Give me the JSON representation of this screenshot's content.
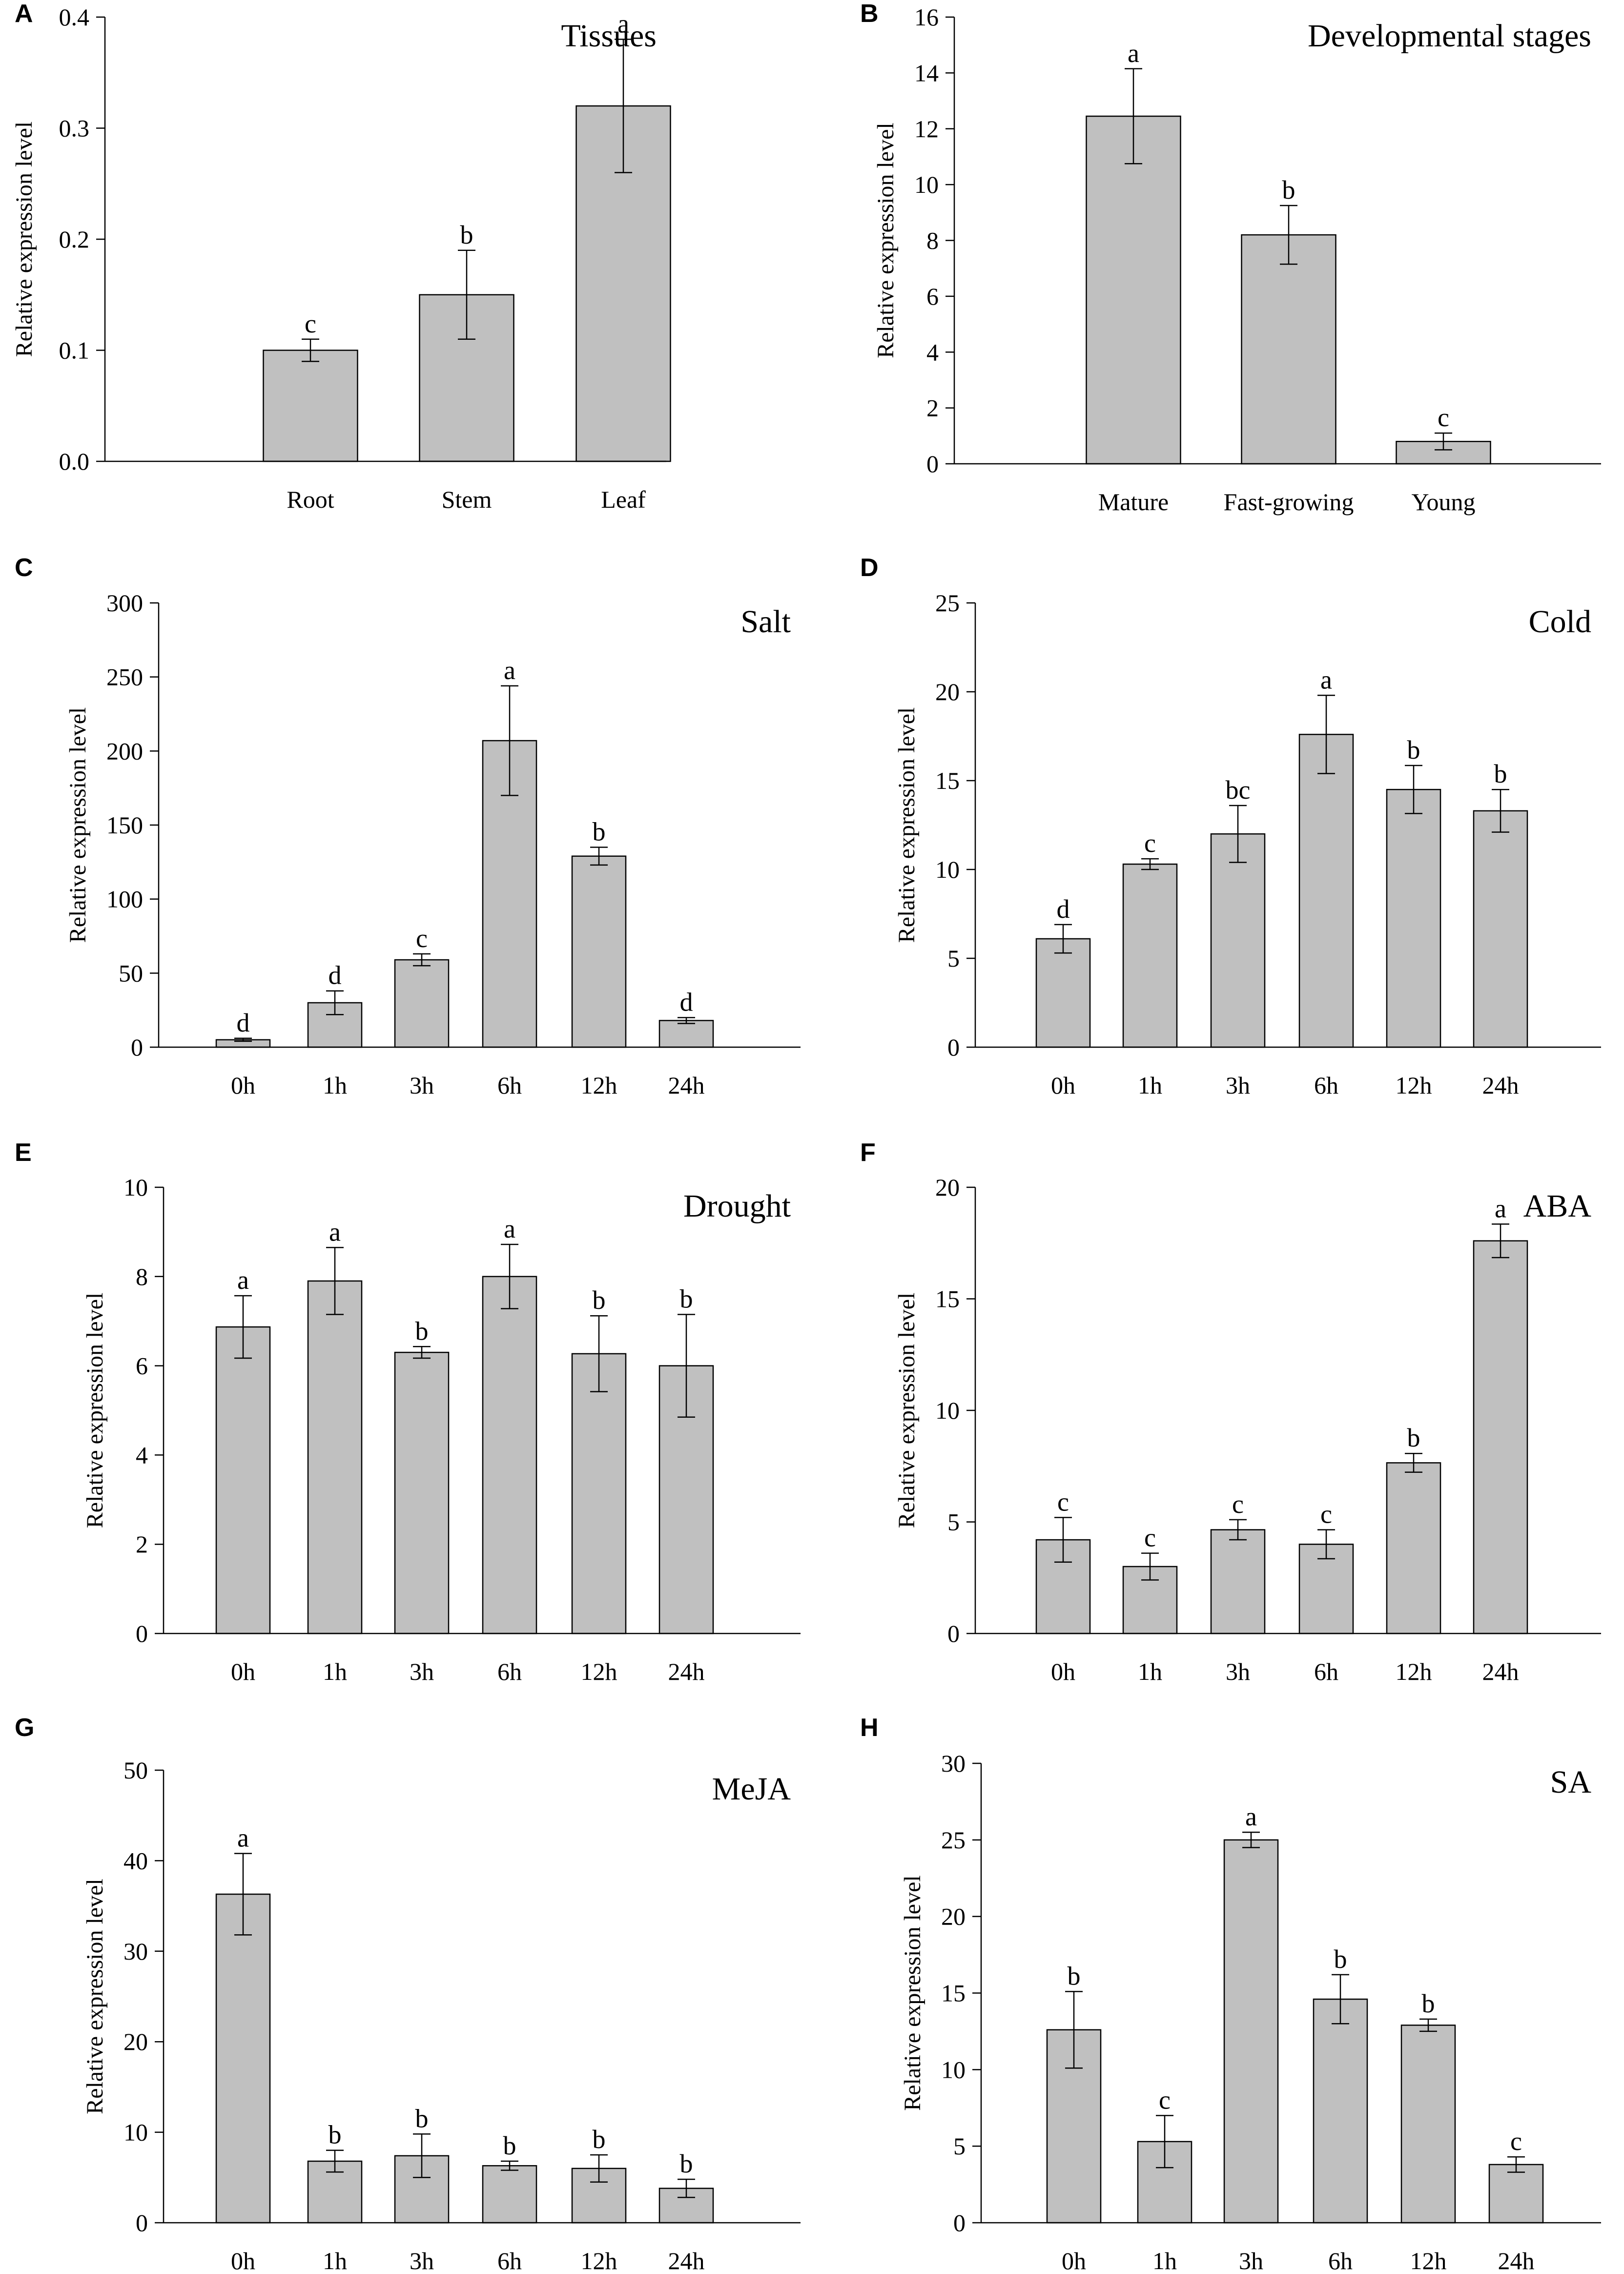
{
  "figure": {
    "axis_ylabel": "Relative expression level",
    "bar_color": "#c0c0c0",
    "edge_color": "#000000"
  },
  "chart_data": [
    {
      "panel": "A",
      "type": "bar",
      "title": "Tissues",
      "title_align": "right",
      "categories": [
        "Root",
        "Stem",
        "Leaf"
      ],
      "values": [
        0.1,
        0.15,
        0.32
      ],
      "errors": [
        0.01,
        0.04,
        0.06
      ],
      "letters": [
        "c",
        "b",
        "a"
      ],
      "ylim": [
        0,
        0.4
      ],
      "yticks": [
        0.0,
        0.1,
        0.2,
        0.3,
        0.4
      ],
      "ytick_labels": [
        "0.0",
        "0.1",
        "0.2",
        "0.3",
        "0.4"
      ],
      "ylabel": "Relative expression level",
      "xlabel": ""
    },
    {
      "panel": "B",
      "type": "bar",
      "title": "Developmental stages",
      "title_align": "right",
      "categories": [
        "Mature",
        "Fast-growing",
        "Young"
      ],
      "values": [
        12.45,
        8.2,
        0.8
      ],
      "errors": [
        1.7,
        1.05,
        0.3
      ],
      "letters": [
        "a",
        "b",
        "c"
      ],
      "ylim": [
        0,
        16
      ],
      "yticks": [
        0,
        2,
        4,
        6,
        8,
        10,
        12,
        14,
        16
      ],
      "ytick_labels": [
        "0",
        "2",
        "4",
        "6",
        "8",
        "10",
        "12",
        "14",
        "16"
      ],
      "ylabel": "Relative expression level",
      "xlabel": ""
    },
    {
      "panel": "C",
      "type": "bar",
      "title": "Salt",
      "title_align": "right",
      "categories": [
        "0h",
        "1h",
        "3h",
        "6h",
        "12h",
        "24h"
      ],
      "values": [
        5,
        30,
        59,
        207,
        129,
        18
      ],
      "errors": [
        1,
        8,
        4,
        37,
        6,
        2
      ],
      "letters": [
        "d",
        "d",
        "c",
        "a",
        "b",
        "d"
      ],
      "ylim": [
        0,
        300
      ],
      "yticks": [
        0,
        50,
        100,
        150,
        200,
        250,
        300
      ],
      "ytick_labels": [
        "0",
        "50",
        "100",
        "150",
        "200",
        "250",
        "300"
      ],
      "ylabel": "Relative expression level",
      "xlabel": ""
    },
    {
      "panel": "D",
      "type": "bar",
      "title": "Cold",
      "title_align": "right",
      "categories": [
        "0h",
        "1h",
        "3h",
        "6h",
        "12h",
        "24h"
      ],
      "values": [
        6.1,
        10.3,
        12.0,
        17.6,
        14.5,
        13.3
      ],
      "errors": [
        0.8,
        0.3,
        1.6,
        2.2,
        1.35,
        1.2
      ],
      "letters": [
        "d",
        "c",
        "bc",
        "a",
        "b",
        "b"
      ],
      "ylim": [
        0,
        25
      ],
      "yticks": [
        0,
        5,
        10,
        15,
        20,
        25
      ],
      "ytick_labels": [
        "0",
        "5",
        "10",
        "15",
        "20",
        "25"
      ],
      "ylabel": "Relative expression level",
      "xlabel": ""
    },
    {
      "panel": "E",
      "type": "bar",
      "title": "Drought",
      "title_align": "right",
      "categories": [
        "0h",
        "1h",
        "3h",
        "6h",
        "12h",
        "24h"
      ],
      "values": [
        6.87,
        7.9,
        6.3,
        8.0,
        6.27,
        6.0
      ],
      "errors": [
        0.7,
        0.75,
        0.13,
        0.72,
        0.85,
        1.15
      ],
      "letters": [
        "a",
        "a",
        "b",
        "a",
        "b",
        "b"
      ],
      "ylim": [
        0,
        10
      ],
      "yticks": [
        0,
        2,
        4,
        6,
        8,
        10
      ],
      "ytick_labels": [
        "0",
        "2",
        "4",
        "6",
        "8",
        "10"
      ],
      "ylabel": "Relative expression level",
      "xlabel": ""
    },
    {
      "panel": "F",
      "type": "bar",
      "title": "ABA",
      "title_align": "right",
      "categories": [
        "0h",
        "1h",
        "3h",
        "6h",
        "12h",
        "24h"
      ],
      "values": [
        4.2,
        3.0,
        4.65,
        4.0,
        7.65,
        17.6
      ],
      "errors": [
        1.0,
        0.6,
        0.45,
        0.65,
        0.42,
        0.75
      ],
      "letters": [
        "c",
        "c",
        "c",
        "c",
        "b",
        "a"
      ],
      "ylim": [
        0,
        20
      ],
      "yticks": [
        0,
        5,
        10,
        15,
        20
      ],
      "ytick_labels": [
        "0",
        "5",
        "10",
        "15",
        "20"
      ],
      "ylabel": "Relative expression level",
      "xlabel": ""
    },
    {
      "panel": "G",
      "type": "bar",
      "title": "MeJA",
      "title_align": "right",
      "categories": [
        "0h",
        "1h",
        "3h",
        "6h",
        "12h",
        "24h"
      ],
      "values": [
        36.3,
        6.8,
        7.4,
        6.3,
        6.0,
        3.8
      ],
      "errors": [
        4.5,
        1.2,
        2.4,
        0.5,
        1.5,
        1.0
      ],
      "letters": [
        "a",
        "b",
        "b",
        "b",
        "b",
        "b"
      ],
      "ylim": [
        0,
        50
      ],
      "yticks": [
        0,
        10,
        20,
        30,
        40,
        50
      ],
      "ytick_labels": [
        "0",
        "10",
        "20",
        "30",
        "40",
        "50"
      ],
      "ylabel": "Relative expression level",
      "xlabel": ""
    },
    {
      "panel": "H",
      "type": "bar",
      "title": "SA",
      "title_align": "right",
      "categories": [
        "0h",
        "1h",
        "3h",
        "6h",
        "12h",
        "24h"
      ],
      "values": [
        12.6,
        5.3,
        25.0,
        14.6,
        12.9,
        3.8
      ],
      "errors": [
        2.5,
        1.7,
        0.5,
        1.6,
        0.4,
        0.5
      ],
      "letters": [
        "b",
        "c",
        "a",
        "b",
        "b",
        "c"
      ],
      "ylim": [
        0,
        30
      ],
      "yticks": [
        0,
        5,
        10,
        15,
        20,
        25,
        30
      ],
      "ytick_labels": [
        "0",
        "5",
        "10",
        "15",
        "20",
        "25",
        "30"
      ],
      "ylabel": "Relative expression level",
      "xlabel": ""
    }
  ]
}
